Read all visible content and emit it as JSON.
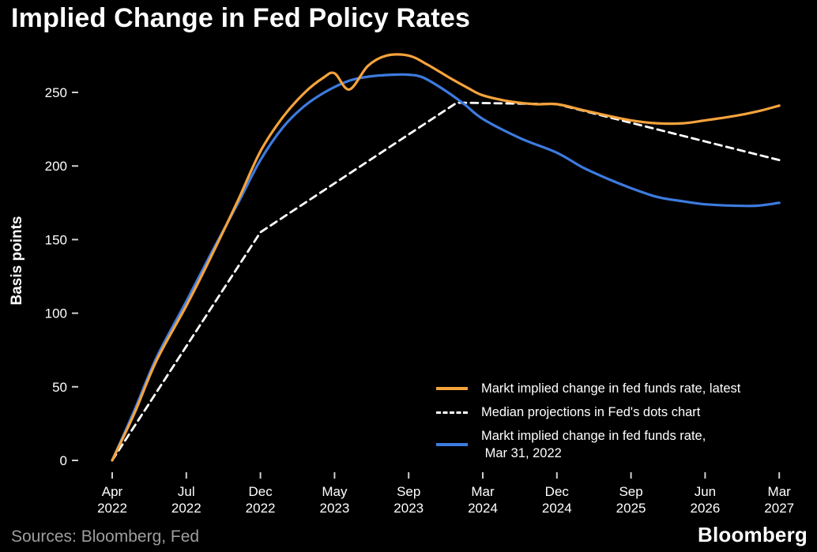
{
  "chart_data": {
    "type": "line",
    "title": "Implied Change in Fed Policy Rates",
    "xlabel": "",
    "ylabel": "Basis points",
    "ylim": [
      0,
      285
    ],
    "yticks": [
      0,
      50,
      100,
      150,
      200,
      250
    ],
    "grid": false,
    "background_color": "#000000",
    "axis_text_color": "#ffffff",
    "tick_color": "#cfcfcf",
    "legend_position": "lower right",
    "x_unit": "tick index 0-9, ticks evenly spaced",
    "xticks": [
      [
        "Apr",
        "2022"
      ],
      [
        "Jul",
        "2022"
      ],
      [
        "Dec",
        "2022"
      ],
      [
        "May",
        "2023"
      ],
      [
        "Sep",
        "2023"
      ],
      [
        "Mar",
        "2024"
      ],
      [
        "Dec",
        "2024"
      ],
      [
        "Sep",
        "2025"
      ],
      [
        "Jun",
        "2026"
      ],
      [
        "Mar",
        "2027"
      ]
    ],
    "series": [
      {
        "name": "Markt implied change in fed funds rate, latest",
        "legend_label_lines": [
          "Markt implied change in fed funds rate, latest"
        ],
        "color": "#f5a33c",
        "style": "solid",
        "points": [
          [
            0,
            0
          ],
          [
            0.3,
            32
          ],
          [
            0.6,
            68
          ],
          [
            1,
            105
          ],
          [
            1.35,
            140
          ],
          [
            1.7,
            177
          ],
          [
            2,
            210
          ],
          [
            2.3,
            233
          ],
          [
            2.6,
            250
          ],
          [
            2.85,
            260
          ],
          [
            3.0,
            263
          ],
          [
            3.2,
            252
          ],
          [
            3.45,
            268
          ],
          [
            3.7,
            275
          ],
          [
            4.0,
            275
          ],
          [
            4.25,
            269
          ],
          [
            4.55,
            260
          ],
          [
            4.8,
            253
          ],
          [
            5.0,
            248
          ],
          [
            5.35,
            244
          ],
          [
            5.7,
            242
          ],
          [
            6.0,
            242
          ],
          [
            6.35,
            238
          ],
          [
            6.7,
            234
          ],
          [
            7.0,
            231
          ],
          [
            7.35,
            229
          ],
          [
            7.7,
            229
          ],
          [
            8.0,
            231
          ],
          [
            8.4,
            234
          ],
          [
            8.7,
            237
          ],
          [
            9.0,
            241
          ]
        ]
      },
      {
        "name": "Median projections in Fed's dots chart",
        "legend_label_lines": [
          "Median projections in Fed's dots chart"
        ],
        "color": "#ffffff",
        "style": "dashed",
        "points": [
          [
            0,
            0
          ],
          [
            2,
            155
          ],
          [
            4.65,
            243
          ],
          [
            6.0,
            242
          ],
          [
            9.0,
            204
          ]
        ]
      },
      {
        "name": "Markt implied change in fed funds rate, Mar 31, 2022",
        "legend_label_lines": [
          "Markt implied change in fed funds rate,",
          " Mar 31, 2022"
        ],
        "color": "#3d7be0",
        "style": "solid",
        "points": [
          [
            0,
            0
          ],
          [
            0.3,
            34
          ],
          [
            0.6,
            70
          ],
          [
            1,
            108
          ],
          [
            1.35,
            142
          ],
          [
            1.7,
            175
          ],
          [
            2,
            204
          ],
          [
            2.3,
            226
          ],
          [
            2.6,
            241
          ],
          [
            2.9,
            251
          ],
          [
            3.2,
            258
          ],
          [
            3.5,
            261
          ],
          [
            3.8,
            262
          ],
          [
            4.0,
            262
          ],
          [
            4.2,
            260
          ],
          [
            4.5,
            251
          ],
          [
            4.75,
            242
          ],
          [
            5.0,
            232
          ],
          [
            5.5,
            219
          ],
          [
            6.0,
            209
          ],
          [
            6.35,
            199
          ],
          [
            6.7,
            191
          ],
          [
            7.0,
            185
          ],
          [
            7.35,
            179
          ],
          [
            7.7,
            176
          ],
          [
            8.0,
            174
          ],
          [
            8.4,
            173
          ],
          [
            8.7,
            173
          ],
          [
            9.0,
            175
          ]
        ]
      }
    ]
  },
  "footer": {
    "sources": "Sources: Bloomberg, Fed",
    "brand": "Bloomberg"
  }
}
